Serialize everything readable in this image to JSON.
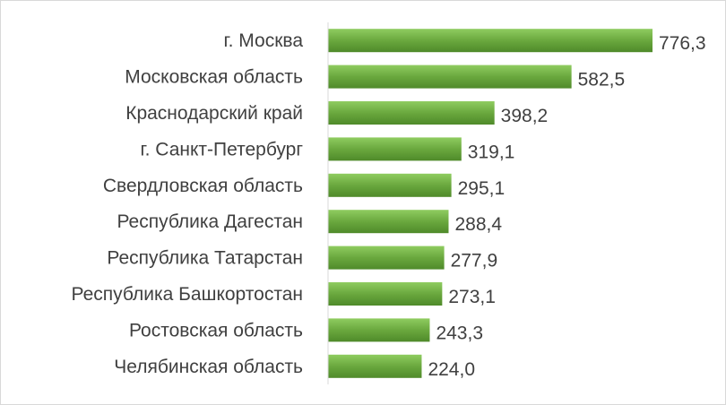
{
  "chart_data": {
    "type": "bar",
    "orientation": "horizontal",
    "categories": [
      "г. Москва",
      "Московская область",
      "Краснодарский край",
      "г. Санкт-Петербург",
      "Свердловская область",
      "Республика Дагестан",
      "Республика Татарстан",
      "Республика Башкортостан",
      "Ростовская область",
      "Челябинская область"
    ],
    "values": [
      776.3,
      582.5,
      398.2,
      319.1,
      295.1,
      288.4,
      277.9,
      273.1,
      243.3,
      224.0
    ],
    "value_labels": [
      "776,3",
      "582,5",
      "398,2",
      "319,1",
      "295,1",
      "288,4",
      "277,9",
      "273,1",
      "243,3",
      "224,0"
    ],
    "title": "",
    "xlabel": "",
    "ylabel": "",
    "xlim": [
      0,
      776.3
    ],
    "grid": false,
    "legend": "none",
    "colors": {
      "bar_light": "#8fcc60",
      "bar_dark": "#4f8a2a",
      "axis": "#d9d9d9",
      "text": "#404040"
    }
  }
}
